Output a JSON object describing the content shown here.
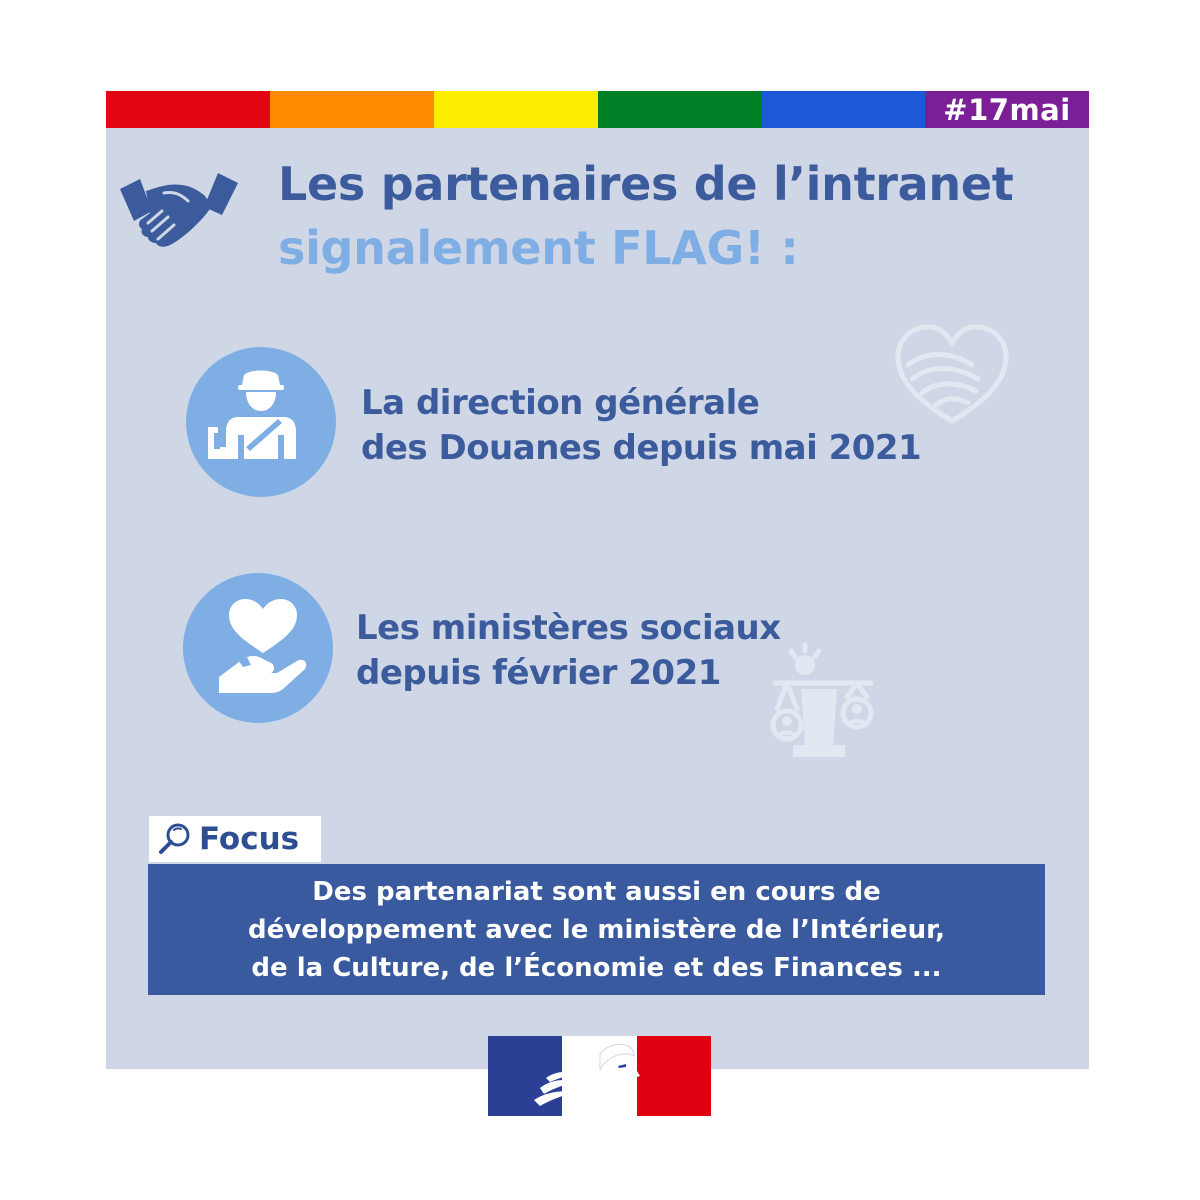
{
  "stripes": [
    "#e20613",
    "#ff8c00",
    "#ffed00",
    "#008026",
    "#1c59d6"
  ],
  "hashtag": "#17mai",
  "title": {
    "line1": "Les partenaires de l’intranet",
    "line2": "signalement FLAG! :"
  },
  "partners": [
    {
      "icon": "customs-officer-icon",
      "line1": "La direction générale",
      "line2": "des Douanes depuis mai 2021"
    },
    {
      "icon": "heart-in-hand-icon",
      "line1": "Les ministères sociaux",
      "line2": "depuis février 2021"
    }
  ],
  "focus": {
    "label": "Focus",
    "icon": "magnifier-icon",
    "lines": [
      "Des partenariat sont aussi en cours de",
      "développement avec le ministère de l’Intérieur,",
      "de la Culture, de l’Économie et des Finances ..."
    ]
  },
  "logo": {
    "name": "marianne-logo",
    "colors": [
      "#2b3f95",
      "#ffffff",
      "#e1000f"
    ]
  },
  "colors": {
    "background": "#cfd7e6",
    "title_dark": "#3b5b9c",
    "title_light": "#7eaee3",
    "focus_box": "#3a5aa0",
    "hashtag_bg": "#7a1f96"
  }
}
